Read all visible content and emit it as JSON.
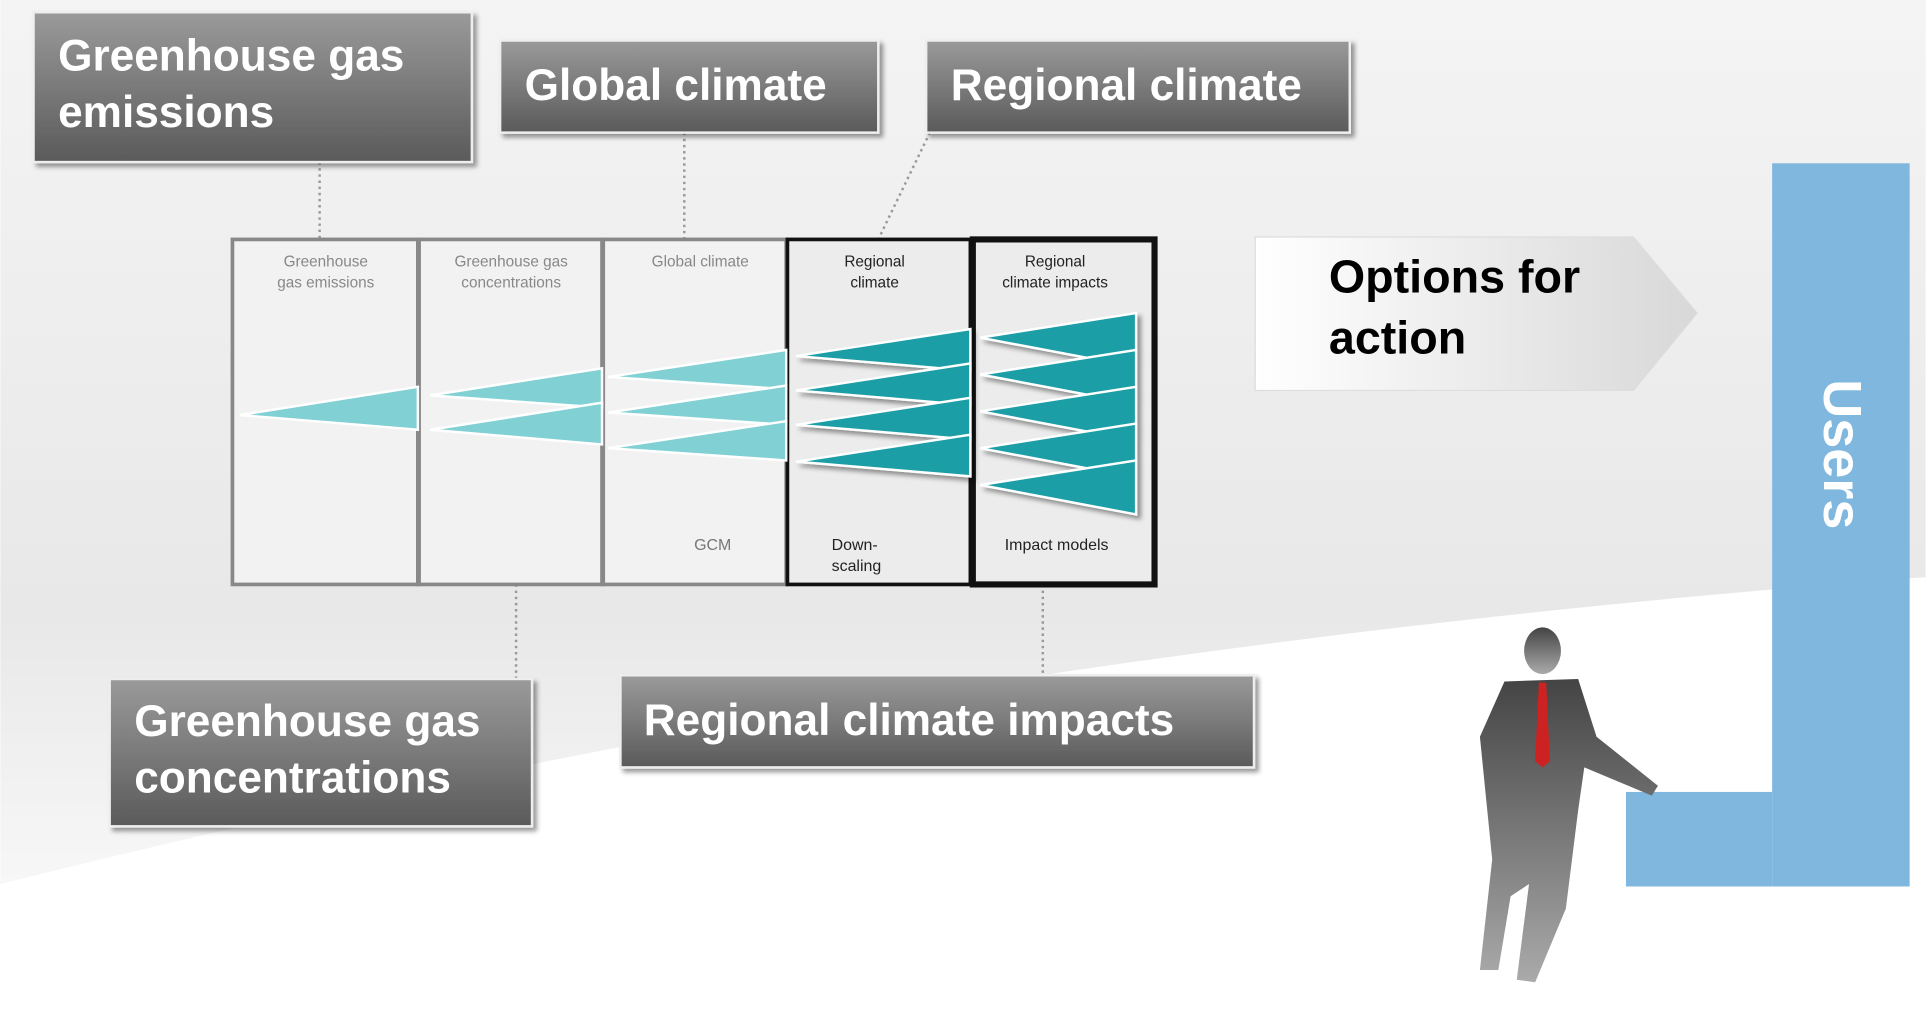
{
  "callouts": [
    {
      "lines": [
        "Greenhouse gas",
        "emissions"
      ]
    },
    {
      "lines": [
        "Global climate"
      ]
    },
    {
      "lines": [
        "Regional climate"
      ]
    },
    {
      "lines": [
        "Greenhouse gas",
        "concentrations"
      ]
    },
    {
      "lines": [
        "Regional climate impacts"
      ]
    }
  ],
  "panels": [
    {
      "title": [
        "Greenhouse",
        "gas emissions"
      ],
      "footer": []
    },
    {
      "title": [
        "Greenhouse gas",
        "concentrations"
      ],
      "footer": []
    },
    {
      "title": [
        "Global climate"
      ],
      "footer": [
        "GCM"
      ]
    },
    {
      "title": [
        "Regional",
        "climate"
      ],
      "footer": [
        "Down-",
        "scaling"
      ]
    },
    {
      "title": [
        "Regional",
        "climate impacts"
      ],
      "footer": [
        "Impact models"
      ]
    }
  ],
  "options": [
    "Options for",
    "action"
  ],
  "users": "Users"
}
